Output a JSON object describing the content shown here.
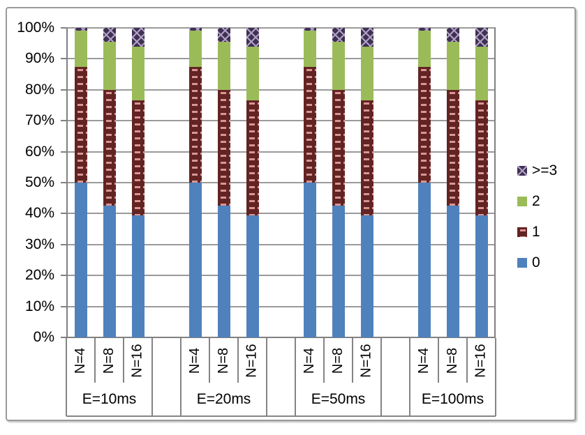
{
  "chart_data": {
    "type": "bar",
    "subtype": "100-percent-stacked-column",
    "title": "",
    "xlabel": "",
    "ylabel": "",
    "ylim": [
      0,
      100
    ],
    "grid": true,
    "legend_position": "right",
    "y_tick_labels": [
      "0%",
      "10%",
      "20%",
      "30%",
      "40%",
      "50%",
      "60%",
      "70%",
      "80%",
      "90%",
      "100%"
    ],
    "series": [
      {
        "name": "0",
        "color": "#4F81BD",
        "pattern": "solid"
      },
      {
        "name": "1",
        "color": "#622423",
        "pattern": "horizontal-dashes",
        "pattern_color": "#D99694"
      },
      {
        "name": "2",
        "color": "#9BBB59",
        "pattern": "solid"
      },
      {
        "name": ">=3",
        "color": "#3F3151",
        "pattern": "wave",
        "pattern_color": "#B2A1C7"
      }
    ],
    "groups": [
      {
        "label": "E=10ms",
        "categories": [
          "N=4",
          "N=8",
          "N=16"
        ],
        "values": [
          [
            50,
            37.5,
            11.5,
            1
          ],
          [
            42.5,
            37.5,
            15.5,
            4.5
          ],
          [
            39.5,
            37,
            17.5,
            6
          ]
        ]
      },
      {
        "label": "E=20ms",
        "categories": [
          "N=4",
          "N=8",
          "N=16"
        ],
        "values": [
          [
            50,
            37.5,
            11.5,
            1
          ],
          [
            42.5,
            37.5,
            15.5,
            4.5
          ],
          [
            39.5,
            37,
            17.5,
            6
          ]
        ]
      },
      {
        "label": "E=50ms",
        "categories": [
          "N=4",
          "N=8",
          "N=16"
        ],
        "values": [
          [
            50,
            37.5,
            11.5,
            1
          ],
          [
            42.5,
            37.5,
            15.5,
            4.5
          ],
          [
            39.5,
            37,
            17.5,
            6
          ]
        ]
      },
      {
        "label": "E=100ms",
        "categories": [
          "N=4",
          "N=8",
          "N=16"
        ],
        "values": [
          [
            50,
            37.5,
            11.5,
            1
          ],
          [
            42.5,
            37.5,
            15.5,
            4.5
          ],
          [
            39.5,
            37,
            17.5,
            6
          ]
        ]
      }
    ],
    "values_unit": "percent"
  },
  "colors": {
    "gridline": "#9a9a9a",
    "axis": "#808080",
    "label_area_lines": "#848484",
    "text": "#000000",
    "frame_border": "#9b9b9b",
    "background": "#ffffff"
  }
}
